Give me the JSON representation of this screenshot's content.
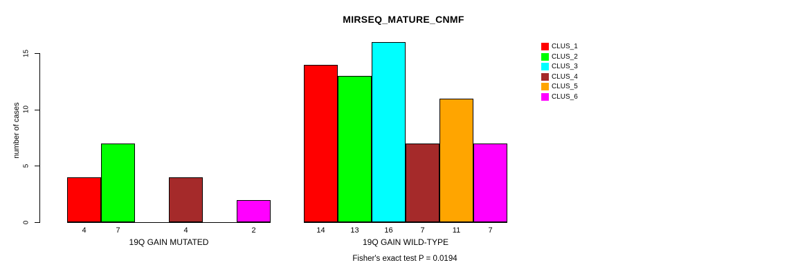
{
  "header": {
    "title": "MIRSEQ_MATURE_CNMF"
  },
  "annotation": {
    "fisher_test": "Fisher's exact test P = 0.0194"
  },
  "chart_data": {
    "type": "bar",
    "title": "MIRSEQ_MATURE_CNMF",
    "xlabel": "",
    "ylabel": "number of cases",
    "ylim": [
      0,
      16.5
    ],
    "yticks": [
      0,
      5,
      10,
      15
    ],
    "grid": false,
    "legend_position": "right",
    "annotation": "Fisher's exact test P = 0.0194",
    "categories": [
      "19Q GAIN MUTATED",
      "19Q GAIN WILD-TYPE"
    ],
    "series": [
      {
        "name": "CLUS_1",
        "color": "#ff0000",
        "values": [
          4,
          14
        ]
      },
      {
        "name": "CLUS_2",
        "color": "#00ff00",
        "values": [
          7,
          13
        ]
      },
      {
        "name": "CLUS_3",
        "color": "#00ffff",
        "values": [
          0,
          16
        ]
      },
      {
        "name": "CLUS_4",
        "color": "#a52a2a",
        "values": [
          4,
          7
        ]
      },
      {
        "name": "CLUS_5",
        "color": "#ffa500",
        "values": [
          0,
          11
        ]
      },
      {
        "name": "CLUS_6",
        "color": "#ff00ff",
        "values": [
          2,
          7
        ]
      }
    ],
    "bar_value_labels": [
      [
        "4",
        "7",
        "",
        "4",
        "",
        "2"
      ],
      [
        "14",
        "13",
        "16",
        "7",
        "11",
        "7"
      ]
    ],
    "legend_entries": [
      "CLUS_1",
      "CLUS_2",
      "CLUS_3",
      "CLUS_4",
      "CLUS_5",
      "CLUS_6"
    ],
    "colors": {
      "background": "#ffffff",
      "bar_border": "#000000",
      "text": "#000000"
    }
  }
}
